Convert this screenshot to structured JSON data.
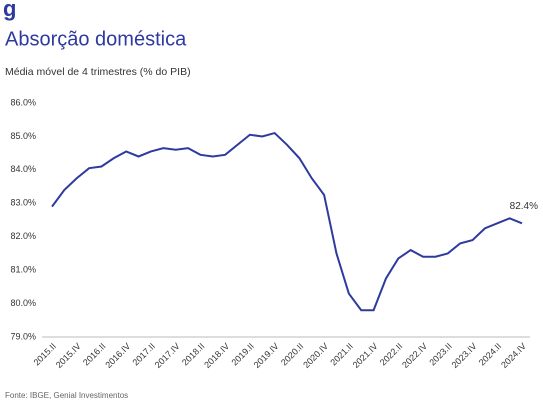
{
  "chart_data": {
    "type": "line",
    "logo": "g",
    "title": "Absorção doméstica",
    "subtitle": "Média móvel de 4 trimestres (% do PIB)",
    "source": "Fonte: IBGE, Genial Investimentos",
    "categories": [
      "2015.II",
      null,
      "2015.IV",
      null,
      "2016.II",
      null,
      "2016.IV",
      null,
      "2017.II",
      null,
      "2017.IV",
      null,
      "2018.II",
      null,
      "2018.IV",
      null,
      "2019.II",
      null,
      "2019.IV",
      null,
      "2020.II",
      null,
      "2020.IV",
      null,
      "2021.II",
      null,
      "2021.IV",
      null,
      "2022.II",
      null,
      "2022.IV",
      null,
      "2023.II",
      null,
      "2023.IV",
      null,
      "2024.II",
      null,
      "2024.IV"
    ],
    "series": [
      {
        "name": "Absorção doméstica",
        "color": "#2e3a9e",
        "values": [
          82.9,
          83.4,
          83.75,
          84.05,
          84.1,
          84.35,
          84.55,
          84.4,
          84.55,
          84.65,
          84.6,
          84.65,
          84.45,
          84.4,
          84.45,
          84.75,
          85.05,
          85.0,
          85.1,
          84.75,
          84.35,
          83.75,
          83.25,
          81.5,
          80.3,
          79.8,
          79.8,
          80.75,
          81.35,
          81.6,
          81.4,
          81.4,
          81.5,
          81.8,
          81.9,
          82.25,
          82.4,
          82.55,
          82.4
        ],
        "value_labels": [
          null,
          null,
          null,
          null,
          null,
          null,
          null,
          null,
          null,
          null,
          null,
          null,
          null,
          null,
          null,
          null,
          null,
          null,
          null,
          null,
          null,
          null,
          null,
          null,
          null,
          null,
          null,
          null,
          null,
          null,
          null,
          null,
          null,
          null,
          null,
          null,
          null,
          null,
          "82.4%"
        ]
      }
    ],
    "ylim": [
      79,
      86
    ],
    "yticks": [
      {
        "value": 79,
        "label": "79.0%"
      },
      {
        "value": 80,
        "label": "80.0%"
      },
      {
        "value": 81,
        "label": "81.0%"
      },
      {
        "value": 82,
        "label": "82.0%"
      },
      {
        "value": 83,
        "label": "83.0%"
      },
      {
        "value": 84,
        "label": "84.0%"
      },
      {
        "value": 85,
        "label": "85.0%"
      },
      {
        "value": 86,
        "label": "86.0%"
      }
    ],
    "grid": false
  }
}
